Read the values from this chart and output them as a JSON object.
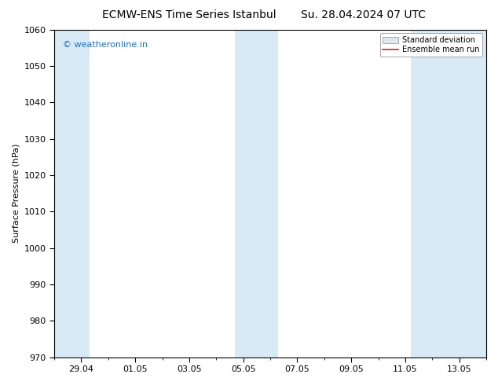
{
  "title_left": "ECMW-ENS Time Series Istanbul",
  "title_right": "Su. 28.04.2024 07 UTC",
  "ylabel": "Surface Pressure (hPa)",
  "ylim": [
    970,
    1060
  ],
  "yticks": [
    970,
    980,
    990,
    1000,
    1010,
    1020,
    1030,
    1040,
    1050,
    1060
  ],
  "xtick_labels": [
    "29.04",
    "01.05",
    "03.05",
    "05.05",
    "07.05",
    "09.05",
    "11.05",
    "13.05"
  ],
  "xtick_positions": [
    1,
    3,
    5,
    7,
    9,
    11,
    13,
    15
  ],
  "x_minor_positions": [
    0,
    1,
    2,
    3,
    4,
    5,
    6,
    7,
    8,
    9,
    10,
    11,
    12,
    13,
    14,
    15,
    16
  ],
  "xlim": [
    0,
    16
  ],
  "shaded_bands": [
    {
      "x_start": 0.0,
      "x_end": 1.3,
      "color": "#d8eaf6"
    },
    {
      "x_start": 6.7,
      "x_end": 8.3,
      "color": "#d8eaf6"
    },
    {
      "x_start": 13.2,
      "x_end": 16.0,
      "color": "#d8eaf6"
    }
  ],
  "watermark_text": "© weatheronline.in",
  "watermark_color": "#1a6ed8",
  "background_color": "#ffffff",
  "plot_bg_color": "#ffffff",
  "legend_std_facecolor": "#dce9f5",
  "legend_std_edgecolor": "#aaaaaa",
  "legend_mean_color": "#dd2222",
  "title_fontsize": 10,
  "axis_label_fontsize": 8,
  "tick_fontsize": 8,
  "watermark_fontsize": 8
}
